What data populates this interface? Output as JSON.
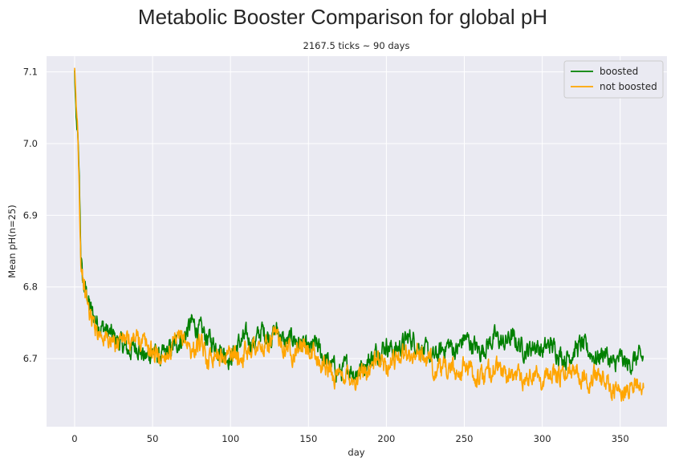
{
  "chart_data": {
    "type": "line",
    "title": "Metabolic Booster Comparison for global pH",
    "subtitle": "2167.5 ticks ~ 90 days",
    "xlabel": "day",
    "ylabel": "Mean pH(n=25)",
    "xlim": [
      -18,
      380
    ],
    "ylim": [
      6.605,
      7.122
    ],
    "xticks": [
      0,
      50,
      100,
      150,
      200,
      250,
      300,
      350
    ],
    "yticks": [
      6.7,
      6.8,
      6.9,
      7.0,
      7.1
    ],
    "grid": true,
    "legend_position": "top-right",
    "series": [
      {
        "name": "boosted",
        "color": "#008000",
        "x": [
          0,
          1,
          2,
          3,
          4,
          5,
          6,
          8,
          10,
          12,
          15,
          20,
          25,
          30,
          35,
          40,
          45,
          50,
          55,
          60,
          65,
          70,
          75,
          80,
          85,
          90,
          95,
          100,
          105,
          110,
          115,
          120,
          125,
          130,
          135,
          140,
          145,
          150,
          155,
          160,
          165,
          170,
          175,
          180,
          185,
          190,
          195,
          200,
          205,
          210,
          215,
          220,
          225,
          230,
          235,
          240,
          245,
          250,
          255,
          260,
          265,
          270,
          275,
          280,
          285,
          290,
          295,
          300,
          305,
          310,
          315,
          320,
          325,
          330,
          335,
          340,
          345,
          350,
          355,
          360,
          365
        ],
        "y": [
          7.1,
          7.03,
          7.01,
          6.95,
          6.85,
          6.81,
          6.8,
          6.79,
          6.77,
          6.76,
          6.75,
          6.74,
          6.73,
          6.72,
          6.71,
          6.72,
          6.7,
          6.71,
          6.7,
          6.71,
          6.72,
          6.73,
          6.75,
          6.74,
          6.73,
          6.72,
          6.71,
          6.7,
          6.72,
          6.73,
          6.72,
          6.74,
          6.73,
          6.74,
          6.72,
          6.73,
          6.72,
          6.71,
          6.72,
          6.7,
          6.69,
          6.68,
          6.69,
          6.68,
          6.69,
          6.7,
          6.71,
          6.72,
          6.71,
          6.72,
          6.73,
          6.72,
          6.71,
          6.7,
          6.71,
          6.72,
          6.71,
          6.73,
          6.72,
          6.71,
          6.72,
          6.73,
          6.72,
          6.73,
          6.72,
          6.71,
          6.72,
          6.71,
          6.72,
          6.71,
          6.7,
          6.71,
          6.72,
          6.71,
          6.7,
          6.71,
          6.69,
          6.7,
          6.69,
          6.7,
          6.7
        ]
      },
      {
        "name": "not boosted",
        "color": "#FFA500",
        "x": [
          0,
          1,
          2,
          3,
          4,
          5,
          6,
          8,
          10,
          12,
          15,
          20,
          25,
          30,
          35,
          40,
          45,
          50,
          55,
          60,
          65,
          70,
          75,
          80,
          85,
          90,
          95,
          100,
          105,
          110,
          115,
          120,
          125,
          130,
          135,
          140,
          145,
          150,
          155,
          160,
          165,
          170,
          175,
          180,
          185,
          190,
          195,
          200,
          205,
          210,
          215,
          220,
          225,
          230,
          235,
          240,
          245,
          250,
          255,
          260,
          265,
          270,
          275,
          280,
          285,
          290,
          295,
          300,
          305,
          310,
          315,
          320,
          325,
          330,
          335,
          340,
          345,
          350,
          355,
          360,
          365
        ],
        "y": [
          7.1,
          7.05,
          7.02,
          6.94,
          6.84,
          6.82,
          6.8,
          6.78,
          6.76,
          6.75,
          6.74,
          6.73,
          6.72,
          6.73,
          6.72,
          6.73,
          6.72,
          6.71,
          6.7,
          6.71,
          6.72,
          6.73,
          6.71,
          6.72,
          6.7,
          6.71,
          6.7,
          6.71,
          6.7,
          6.71,
          6.72,
          6.71,
          6.72,
          6.73,
          6.72,
          6.71,
          6.72,
          6.71,
          6.7,
          6.69,
          6.68,
          6.67,
          6.68,
          6.67,
          6.68,
          6.69,
          6.7,
          6.69,
          6.7,
          6.71,
          6.7,
          6.71,
          6.7,
          6.69,
          6.68,
          6.69,
          6.68,
          6.69,
          6.68,
          6.67,
          6.68,
          6.69,
          6.68,
          6.67,
          6.68,
          6.67,
          6.68,
          6.67,
          6.68,
          6.67,
          6.68,
          6.69,
          6.68,
          6.67,
          6.68,
          6.67,
          6.66,
          6.65,
          6.66,
          6.67,
          6.65
        ]
      }
    ]
  }
}
